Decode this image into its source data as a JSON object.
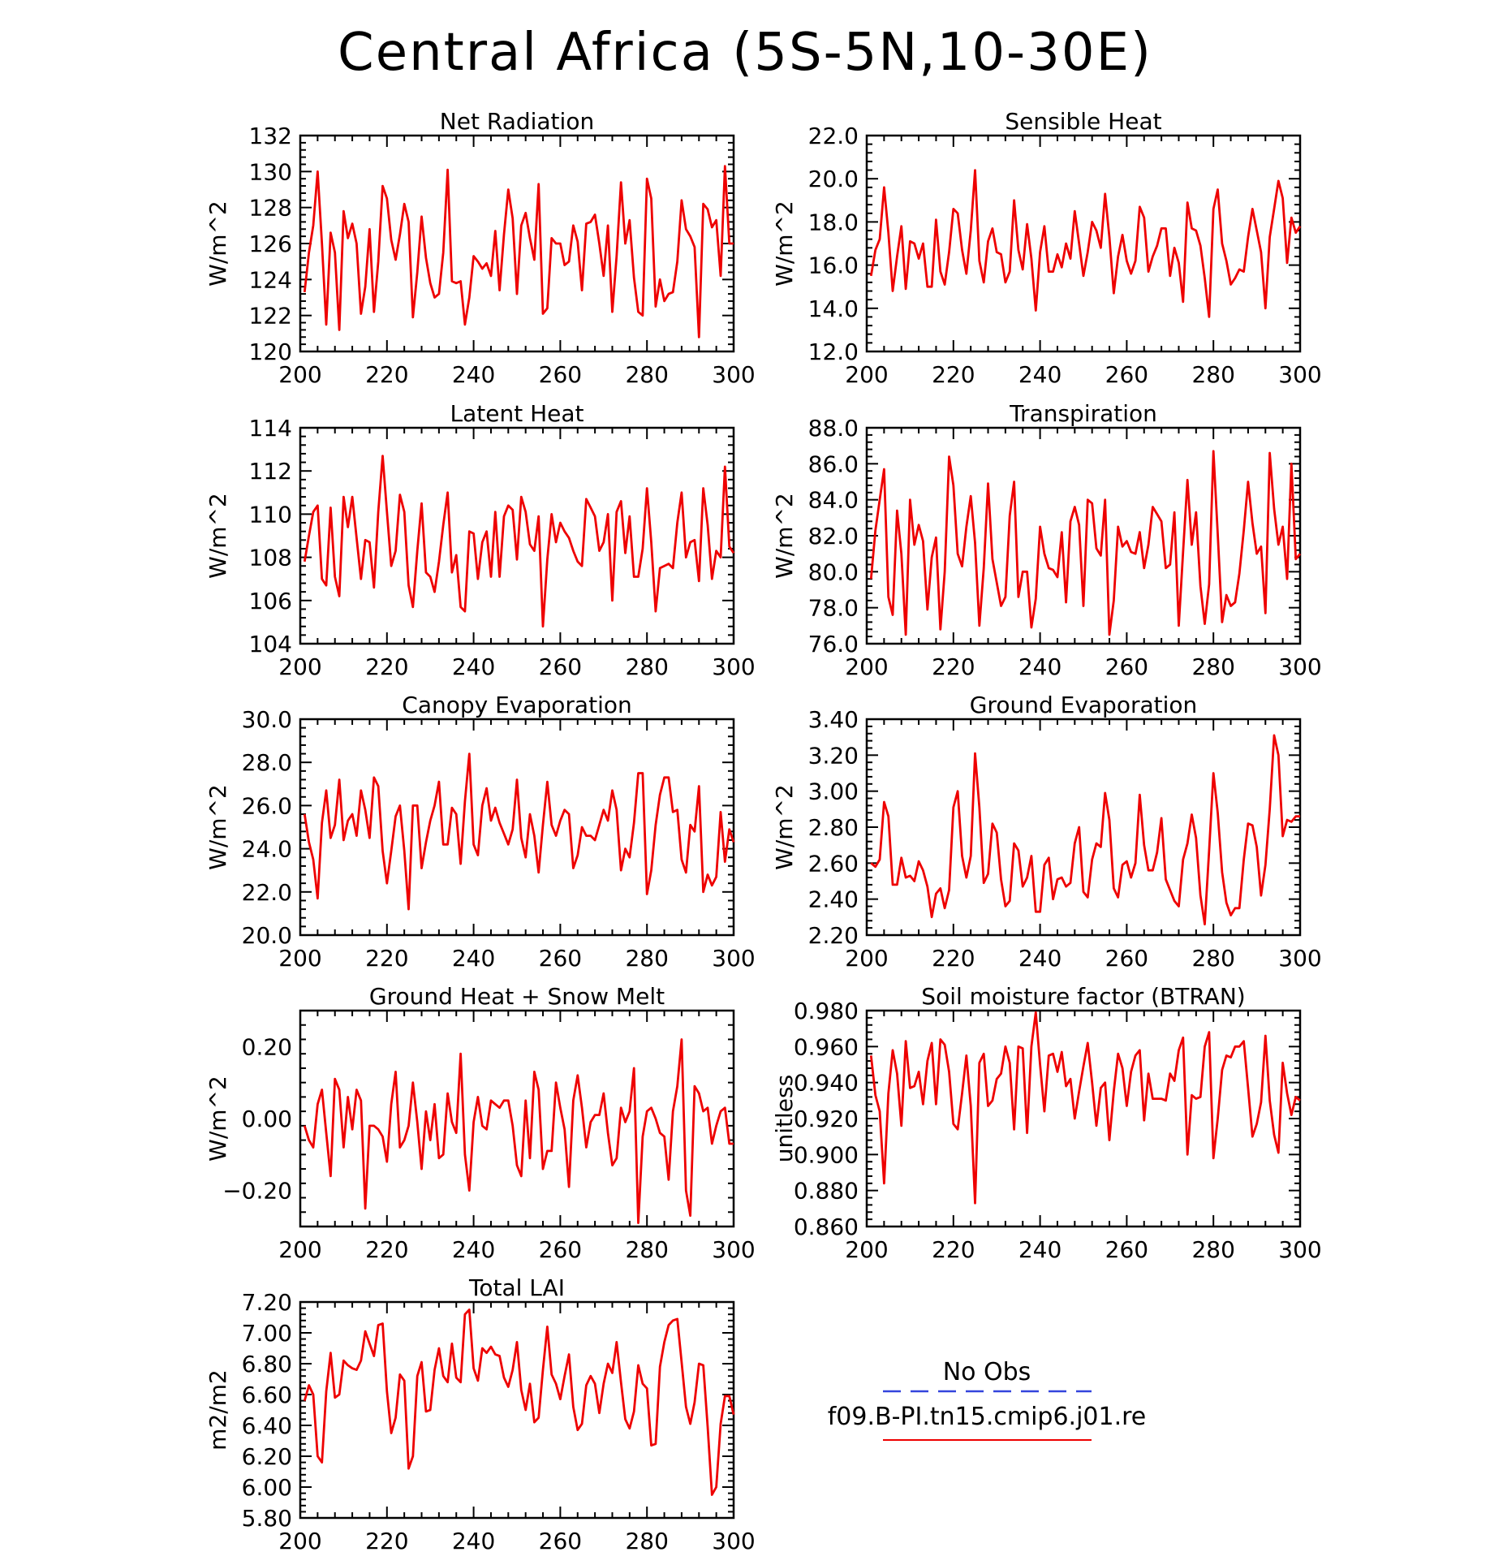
{
  "title": "Central Africa (5S-5N,10-30E)",
  "line_color": "#ee0000",
  "obs_color": "#3344dd",
  "legend": {
    "obs_label": "No Obs",
    "model_label": "f09.B-PI.tn15.cmip6.j01.re"
  },
  "chart_data": [
    {
      "type": "line",
      "title": "Net Radiation",
      "ylabel": "W/m^2",
      "xlim": [
        200,
        300
      ],
      "ylim": [
        120,
        132
      ],
      "xticks": [
        200,
        220,
        240,
        260,
        280,
        300
      ],
      "xtick_labels": [
        "200",
        "220",
        "240",
        "260",
        "280",
        "300"
      ],
      "yticks": [
        120,
        122,
        124,
        126,
        128,
        130,
        132
      ],
      "ytick_labels": [
        "120",
        "122",
        "124",
        "126",
        "128",
        "130",
        "132"
      ],
      "x_start": 201,
      "values": [
        123.3,
        125.5,
        127.0,
        130.0,
        126.0,
        121.5,
        126.6,
        125.5,
        121.2,
        127.8,
        126.3,
        127.1,
        126.0,
        122.1,
        123.6,
        126.8,
        122.2,
        125.0,
        129.2,
        128.5,
        126.2,
        125.1,
        126.5,
        128.2,
        127.2,
        121.9,
        124.4,
        127.5,
        125.2,
        123.8,
        123.0,
        123.2,
        125.5,
        130.1,
        123.9,
        123.8,
        123.9,
        121.5,
        123.0,
        125.3,
        125.0,
        124.6,
        124.9,
        124.2,
        126.7,
        123.4,
        126.5,
        129.0,
        127.4,
        123.2,
        127.0,
        127.7,
        126.3,
        125.1,
        129.3,
        122.1,
        122.4,
        126.3,
        126.0,
        126.0,
        124.8,
        125.0,
        127.0,
        126.1,
        123.4,
        127.1,
        127.2,
        127.6,
        126.0,
        124.2,
        127.0,
        122.2,
        125.3,
        129.4,
        126.0,
        127.3,
        124.1,
        122.2,
        122.0,
        129.6,
        128.5,
        122.5,
        124.0,
        122.8,
        123.2,
        123.3,
        125.0,
        128.4,
        126.8,
        126.4,
        125.8,
        120.8,
        128.2,
        127.9,
        126.9,
        127.3,
        124.2,
        130.3,
        126.0,
        126.0
      ]
    },
    {
      "type": "line",
      "title": "Sensible Heat",
      "ylabel": "W/m^2",
      "xlim": [
        200,
        300
      ],
      "ylim": [
        12,
        22
      ],
      "xticks": [
        200,
        220,
        240,
        260,
        280,
        300
      ],
      "xtick_labels": [
        "200",
        "220",
        "240",
        "260",
        "280",
        "300"
      ],
      "yticks": [
        12,
        14,
        16,
        18,
        20,
        22
      ],
      "ytick_labels": [
        "12.0",
        "14.0",
        "16.0",
        "18.0",
        "20.0",
        "22.0"
      ],
      "x_start": 201,
      "values": [
        15.5,
        16.7,
        17.2,
        19.6,
        17.5,
        14.8,
        16.4,
        17.8,
        14.9,
        17.1,
        17.0,
        16.3,
        17.0,
        15.0,
        15.0,
        18.1,
        15.7,
        15.1,
        16.6,
        18.6,
        18.4,
        16.7,
        15.6,
        17.6,
        20.4,
        16.2,
        15.2,
        17.1,
        17.7,
        16.6,
        16.5,
        15.2,
        15.7,
        19.0,
        16.7,
        15.8,
        17.9,
        16.3,
        13.9,
        16.6,
        17.8,
        15.7,
        15.7,
        16.5,
        15.9,
        17.0,
        16.3,
        18.5,
        17.0,
        15.5,
        16.6,
        18.0,
        17.6,
        16.8,
        19.3,
        17.3,
        14.7,
        16.4,
        17.4,
        16.2,
        15.6,
        16.2,
        18.7,
        18.2,
        15.7,
        16.4,
        16.9,
        17.7,
        17.7,
        15.5,
        16.8,
        16.1,
        14.3,
        18.9,
        17.7,
        17.6,
        16.9,
        15.4,
        13.6,
        18.6,
        19.5,
        17.0,
        16.2,
        15.1,
        15.4,
        15.8,
        15.7,
        17.3,
        18.6,
        17.6,
        16.6,
        14.0,
        17.3,
        18.6,
        19.9,
        19.1,
        16.1,
        18.2,
        17.5,
        17.8
      ]
    },
    {
      "type": "line",
      "title": "Latent Heat",
      "ylabel": "W/m^2",
      "xlim": [
        200,
        300
      ],
      "ylim": [
        104,
        114
      ],
      "xticks": [
        200,
        220,
        240,
        260,
        280,
        300
      ],
      "xtick_labels": [
        "200",
        "220",
        "240",
        "260",
        "280",
        "300"
      ],
      "yticks": [
        104,
        106,
        108,
        110,
        112,
        114
      ],
      "ytick_labels": [
        "104",
        "106",
        "108",
        "110",
        "112",
        "114"
      ],
      "x_start": 201,
      "values": [
        107.8,
        109.0,
        110.1,
        110.4,
        107.0,
        106.7,
        110.3,
        107.1,
        106.2,
        110.8,
        109.4,
        110.8,
        108.9,
        107.0,
        108.8,
        108.7,
        106.6,
        110.1,
        112.7,
        110.1,
        107.6,
        108.3,
        110.9,
        110.1,
        106.7,
        105.7,
        108.3,
        110.5,
        107.3,
        107.1,
        106.4,
        107.8,
        109.5,
        111.0,
        107.3,
        108.1,
        105.7,
        105.5,
        109.2,
        109.1,
        107.0,
        108.7,
        109.2,
        107.1,
        110.1,
        107.1,
        109.9,
        110.4,
        110.2,
        107.9,
        110.8,
        110.1,
        108.6,
        108.3,
        109.9,
        104.8,
        107.9,
        110.0,
        108.7,
        109.6,
        109.2,
        108.9,
        108.3,
        107.8,
        107.6,
        110.7,
        110.3,
        109.9,
        108.3,
        108.7,
        110.0,
        106.0,
        110.1,
        110.6,
        108.2,
        109.9,
        107.1,
        107.1,
        108.4,
        111.2,
        108.7,
        105.5,
        107.5,
        107.6,
        107.7,
        107.5,
        109.6,
        111.0,
        108.0,
        108.7,
        108.8,
        106.9,
        111.2,
        109.5,
        107.0,
        108.3,
        108.0,
        112.2,
        108.5,
        108.2
      ]
    },
    {
      "type": "line",
      "title": "Transpiration",
      "ylabel": "W/m^2",
      "xlim": [
        200,
        300
      ],
      "ylim": [
        76,
        88
      ],
      "xticks": [
        200,
        220,
        240,
        260,
        280,
        300
      ],
      "xtick_labels": [
        "200",
        "220",
        "240",
        "260",
        "280",
        "300"
      ],
      "yticks": [
        76,
        78,
        80,
        82,
        84,
        86,
        88
      ],
      "ytick_labels": [
        "76.0",
        "78.0",
        "80.0",
        "82.0",
        "84.0",
        "86.0",
        "88.0"
      ],
      "x_start": 201,
      "values": [
        79.6,
        82.3,
        84.0,
        85.7,
        78.6,
        77.6,
        83.4,
        81.0,
        76.5,
        84.0,
        81.5,
        82.6,
        81.7,
        77.9,
        80.8,
        81.9,
        76.8,
        80.0,
        86.4,
        84.8,
        81.0,
        80.3,
        82.5,
        84.2,
        81.6,
        77.0,
        80.2,
        84.9,
        80.7,
        79.4,
        78.1,
        78.6,
        83.1,
        85.0,
        78.6,
        80.0,
        80.0,
        76.9,
        78.5,
        82.5,
        81.0,
        80.2,
        80.1,
        79.7,
        82.2,
        78.3,
        82.8,
        83.6,
        82.6,
        78.1,
        84.0,
        83.8,
        81.3,
        80.9,
        84.0,
        76.5,
        78.4,
        82.5,
        81.4,
        81.7,
        81.1,
        81.0,
        82.2,
        80.2,
        81.5,
        83.6,
        83.2,
        82.8,
        80.2,
        80.4,
        83.3,
        77.0,
        81.1,
        85.1,
        81.5,
        83.3,
        79.2,
        77.1,
        79.3,
        86.7,
        82.1,
        77.2,
        78.7,
        78.1,
        78.3,
        79.9,
        82.3,
        85.0,
        82.7,
        81.0,
        81.4,
        77.7,
        86.6,
        83.5,
        81.5,
        82.5,
        79.6,
        86.0,
        80.7,
        81.0
      ]
    },
    {
      "type": "line",
      "title": "Canopy Evaporation",
      "ylabel": "W/m^2",
      "xlim": [
        200,
        300
      ],
      "ylim": [
        20,
        30
      ],
      "xticks": [
        200,
        220,
        240,
        260,
        280,
        300
      ],
      "xtick_labels": [
        "200",
        "220",
        "240",
        "260",
        "280",
        "300"
      ],
      "yticks": [
        20,
        22,
        24,
        26,
        28,
        30
      ],
      "ytick_labels": [
        "20.0",
        "22.0",
        "24.0",
        "26.0",
        "28.0",
        "30.0"
      ],
      "x_start": 201,
      "values": [
        25.6,
        24.3,
        23.5,
        21.7,
        25.2,
        26.7,
        24.5,
        25.1,
        27.2,
        24.4,
        25.3,
        25.6,
        24.6,
        26.7,
        25.8,
        24.5,
        27.3,
        26.9,
        23.9,
        22.4,
        23.9,
        25.5,
        26.0,
        23.9,
        21.2,
        26.0,
        26.0,
        23.1,
        24.3,
        25.3,
        26.0,
        27.1,
        24.2,
        24.2,
        25.9,
        25.6,
        23.3,
        26.2,
        28.4,
        24.2,
        23.7,
        26.0,
        26.8,
        25.3,
        25.9,
        25.2,
        24.7,
        24.2,
        24.9,
        27.2,
        24.5,
        23.6,
        25.6,
        24.6,
        22.9,
        25.1,
        27.1,
        25.1,
        24.6,
        25.3,
        25.8,
        25.6,
        23.1,
        23.7,
        25.0,
        24.6,
        24.6,
        24.4,
        25.1,
        25.8,
        25.3,
        26.7,
        25.8,
        23.0,
        24.0,
        23.6,
        25.2,
        27.5,
        27.5,
        21.9,
        23.0,
        25.1,
        26.5,
        27.3,
        27.3,
        25.7,
        25.8,
        23.5,
        22.9,
        25.1,
        24.8,
        26.9,
        22.0,
        22.8,
        22.3,
        22.7,
        25.7,
        23.4,
        24.9,
        24.3
      ]
    },
    {
      "type": "line",
      "title": "Ground Evaporation",
      "ylabel": "W/m^2",
      "xlim": [
        200,
        300
      ],
      "ylim": [
        2.2,
        3.4
      ],
      "xticks": [
        200,
        220,
        240,
        260,
        280,
        300
      ],
      "xtick_labels": [
        "200",
        "220",
        "240",
        "260",
        "280",
        "300"
      ],
      "yticks": [
        2.2,
        2.4,
        2.6,
        2.8,
        3.0,
        3.2,
        3.4
      ],
      "ytick_labels": [
        "2.20",
        "2.40",
        "2.60",
        "2.80",
        "3.00",
        "3.20",
        "3.40"
      ],
      "x_start": 201,
      "values": [
        2.6,
        2.58,
        2.62,
        2.94,
        2.86,
        2.48,
        2.48,
        2.63,
        2.52,
        2.53,
        2.5,
        2.61,
        2.56,
        2.47,
        2.3,
        2.43,
        2.46,
        2.35,
        2.45,
        2.91,
        3.0,
        2.64,
        2.52,
        2.64,
        3.21,
        2.91,
        2.49,
        2.54,
        2.82,
        2.77,
        2.51,
        2.36,
        2.39,
        2.71,
        2.67,
        2.47,
        2.52,
        2.64,
        2.33,
        2.33,
        2.59,
        2.63,
        2.4,
        2.51,
        2.52,
        2.47,
        2.49,
        2.71,
        2.8,
        2.44,
        2.41,
        2.62,
        2.71,
        2.69,
        2.99,
        2.84,
        2.46,
        2.41,
        2.59,
        2.61,
        2.52,
        2.6,
        2.98,
        2.7,
        2.56,
        2.56,
        2.66,
        2.85,
        2.51,
        2.45,
        2.39,
        2.36,
        2.62,
        2.71,
        2.87,
        2.74,
        2.42,
        2.26,
        2.67,
        3.1,
        2.88,
        2.55,
        2.38,
        2.31,
        2.35,
        2.35,
        2.62,
        2.82,
        2.81,
        2.69,
        2.42,
        2.59,
        2.9,
        3.31,
        3.2,
        2.75,
        2.84,
        2.83,
        2.86,
        2.86
      ]
    },
    {
      "type": "line",
      "title": "Ground Heat + Snow Melt",
      "ylabel": "W/m^2",
      "xlim": [
        200,
        300
      ],
      "ylim": [
        -0.3,
        0.3
      ],
      "xticks": [
        200,
        220,
        240,
        260,
        280,
        300
      ],
      "xtick_labels": [
        "200",
        "220",
        "240",
        "260",
        "280",
        "300"
      ],
      "yticks": [
        -0.2,
        0.0,
        0.2
      ],
      "ytick_labels": [
        "−0.20",
        "0.00",
        "0.20"
      ],
      "x_start": 201,
      "values": [
        -0.02,
        -0.06,
        -0.08,
        0.04,
        0.08,
        -0.04,
        -0.16,
        0.11,
        0.08,
        -0.08,
        0.06,
        -0.03,
        0.08,
        0.05,
        -0.25,
        -0.02,
        -0.02,
        -0.03,
        -0.05,
        -0.12,
        0.04,
        0.13,
        -0.08,
        -0.06,
        -0.02,
        0.1,
        -0.01,
        -0.14,
        0.02,
        -0.06,
        0.04,
        -0.11,
        -0.1,
        0.07,
        -0.01,
        -0.04,
        0.18,
        -0.1,
        -0.2,
        -0.01,
        0.06,
        -0.02,
        -0.03,
        0.05,
        0.04,
        0.03,
        0.05,
        0.05,
        -0.02,
        -0.13,
        -0.16,
        0.05,
        -0.11,
        0.13,
        0.08,
        -0.14,
        -0.09,
        -0.09,
        0.1,
        0.03,
        -0.03,
        -0.19,
        0.05,
        0.12,
        0.03,
        -0.08,
        -0.01,
        0.01,
        0.01,
        0.07,
        -0.04,
        -0.13,
        -0.11,
        0.03,
        -0.01,
        0.02,
        0.14,
        -0.29,
        -0.05,
        0.02,
        0.03,
        0.0,
        -0.04,
        -0.05,
        -0.17,
        0.02,
        0.09,
        0.22,
        -0.2,
        -0.27,
        0.09,
        0.07,
        0.02,
        0.03,
        -0.07,
        -0.02,
        0.02,
        0.03,
        -0.07,
        -0.07
      ]
    },
    {
      "type": "line",
      "title": "Soil moisture factor (BTRAN)",
      "ylabel": "unitless",
      "xlim": [
        200,
        300
      ],
      "ylim": [
        0.86,
        0.98
      ],
      "xticks": [
        200,
        220,
        240,
        260,
        280,
        300
      ],
      "xtick_labels": [
        "200",
        "220",
        "240",
        "260",
        "280",
        "300"
      ],
      "yticks": [
        0.86,
        0.88,
        0.9,
        0.92,
        0.94,
        0.96,
        0.98
      ],
      "ytick_labels": [
        "0.860",
        "0.880",
        "0.900",
        "0.920",
        "0.940",
        "0.960",
        "0.980"
      ],
      "x_start": 201,
      "values": [
        0.955,
        0.933,
        0.924,
        0.884,
        0.934,
        0.958,
        0.945,
        0.916,
        0.963,
        0.937,
        0.938,
        0.946,
        0.928,
        0.952,
        0.962,
        0.928,
        0.964,
        0.961,
        0.946,
        0.917,
        0.914,
        0.934,
        0.955,
        0.927,
        0.873,
        0.951,
        0.956,
        0.927,
        0.93,
        0.942,
        0.945,
        0.96,
        0.951,
        0.914,
        0.96,
        0.959,
        0.912,
        0.96,
        0.979,
        0.95,
        0.924,
        0.955,
        0.956,
        0.946,
        0.957,
        0.938,
        0.942,
        0.92,
        0.935,
        0.949,
        0.962,
        0.94,
        0.916,
        0.937,
        0.94,
        0.908,
        0.935,
        0.956,
        0.948,
        0.927,
        0.946,
        0.955,
        0.958,
        0.919,
        0.945,
        0.931,
        0.931,
        0.931,
        0.93,
        0.945,
        0.941,
        0.958,
        0.965,
        0.9,
        0.933,
        0.931,
        0.932,
        0.96,
        0.968,
        0.898,
        0.92,
        0.947,
        0.955,
        0.954,
        0.96,
        0.96,
        0.963,
        0.937,
        0.91,
        0.917,
        0.929,
        0.966,
        0.93,
        0.911,
        0.901,
        0.951,
        0.934,
        0.922,
        0.932,
        0.93
      ]
    },
    {
      "type": "line",
      "title": "Total LAI",
      "ylabel": "m2/m2",
      "xlim": [
        200,
        300
      ],
      "ylim": [
        5.8,
        7.2
      ],
      "xticks": [
        200,
        220,
        240,
        260,
        280,
        300
      ],
      "xtick_labels": [
        "200",
        "220",
        "240",
        "260",
        "280",
        "300"
      ],
      "yticks": [
        5.8,
        6.0,
        6.2,
        6.4,
        6.6,
        6.8,
        7.0,
        7.2
      ],
      "ytick_labels": [
        "5.80",
        "6.00",
        "6.20",
        "6.40",
        "6.60",
        "6.80",
        "7.00",
        "7.20"
      ],
      "x_start": 201,
      "values": [
        6.56,
        6.66,
        6.6,
        6.2,
        6.16,
        6.62,
        6.87,
        6.58,
        6.6,
        6.82,
        6.79,
        6.77,
        6.76,
        6.82,
        7.01,
        6.93,
        6.85,
        7.05,
        7.06,
        6.62,
        6.35,
        6.45,
        6.73,
        6.69,
        6.12,
        6.2,
        6.72,
        6.81,
        6.49,
        6.5,
        6.76,
        6.9,
        6.72,
        6.68,
        6.93,
        6.71,
        6.68,
        7.12,
        7.15,
        6.77,
        6.69,
        6.9,
        6.87,
        6.91,
        6.86,
        6.85,
        6.71,
        6.65,
        6.76,
        6.94,
        6.63,
        6.5,
        6.67,
        6.42,
        6.45,
        6.76,
        7.04,
        6.73,
        6.67,
        6.57,
        6.72,
        6.86,
        6.52,
        6.37,
        6.41,
        6.66,
        6.72,
        6.67,
        6.48,
        6.67,
        6.8,
        6.74,
        6.94,
        6.68,
        6.44,
        6.38,
        6.49,
        6.79,
        6.67,
        6.64,
        6.27,
        6.28,
        6.78,
        6.94,
        7.05,
        7.08,
        7.09,
        6.81,
        6.52,
        6.41,
        6.55,
        6.8,
        6.79,
        6.39,
        5.95,
        6.0,
        6.41,
        6.59,
        6.59,
        6.47
      ]
    }
  ]
}
